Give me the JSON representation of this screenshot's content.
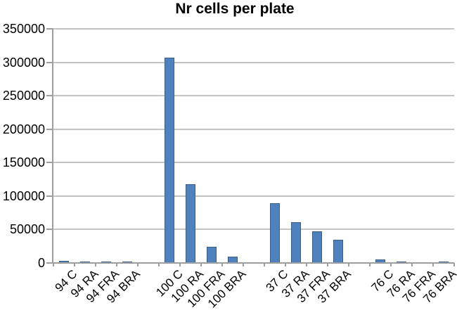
{
  "chart_data": {
    "type": "bar",
    "title": "Nr cells per plate",
    "categories": [
      "94 C",
      "94 RA",
      "94 FRA",
      "94 BRA",
      "100 C",
      "100 RA",
      "100 FRA",
      "100 BRA",
      "37 C",
      "37 RA",
      "37 FRA",
      "37 BRA",
      "76 C",
      "76 RA",
      "76 FRA",
      "76 BRA"
    ],
    "values": [
      3000,
      2000,
      2000,
      2000,
      307000,
      118000,
      24000,
      9000,
      89000,
      61000,
      47000,
      35000,
      5000,
      2500,
      1500,
      2000
    ],
    "group_size": 4,
    "xlabel": "",
    "ylabel": "",
    "ylim": [
      0,
      350000
    ],
    "y_ticks": [
      0,
      50000,
      100000,
      150000,
      200000,
      250000,
      300000,
      350000
    ],
    "grid": true,
    "legend": false,
    "colors": {
      "bar_fill": "#4F81BD",
      "bar_border": "#385D8A",
      "gridline": "#C4C4C4",
      "axis": "#9E9E9E",
      "text": "#000000"
    }
  }
}
